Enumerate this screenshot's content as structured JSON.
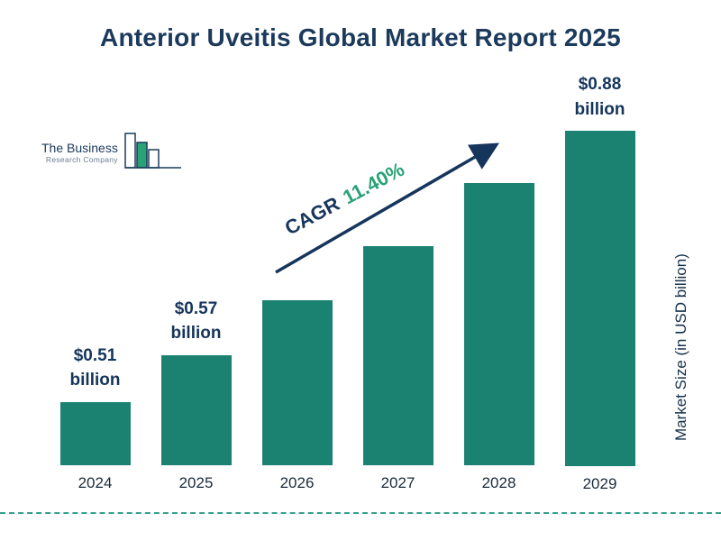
{
  "title": "Anterior Uveitis Global Market Report 2025",
  "logo": {
    "line1": "The Business",
    "line2": "Research Company"
  },
  "cagr": {
    "prefix": "CAGR",
    "value": "11.40%"
  },
  "y_axis_title": "Market Size (in USD billion)",
  "chart_data": {
    "type": "bar",
    "categories": [
      "2024",
      "2025",
      "2026",
      "2027",
      "2028",
      "2029"
    ],
    "values": [
      0.51,
      0.57,
      0.64,
      0.71,
      0.79,
      0.88
    ],
    "value_labels": [
      "$0.51 billion",
      "$0.57 billion",
      "",
      "",
      "",
      "$0.88 billion"
    ],
    "title": "Anterior Uveitis Global Market Report 2025",
    "xlabel": "",
    "ylabel": "Market Size (in USD billion)",
    "ylim": [
      0.43,
      0.89
    ],
    "grid": false,
    "legend": "none",
    "annotation": "CAGR 11.40%",
    "bar_color": "#1b8271"
  },
  "colors": {
    "title": "#1b3a5c",
    "bar": "#1b8271",
    "cagr_green": "#2aa278",
    "arrow_navy": "#16355c",
    "divider_teal": "#35a08f"
  }
}
